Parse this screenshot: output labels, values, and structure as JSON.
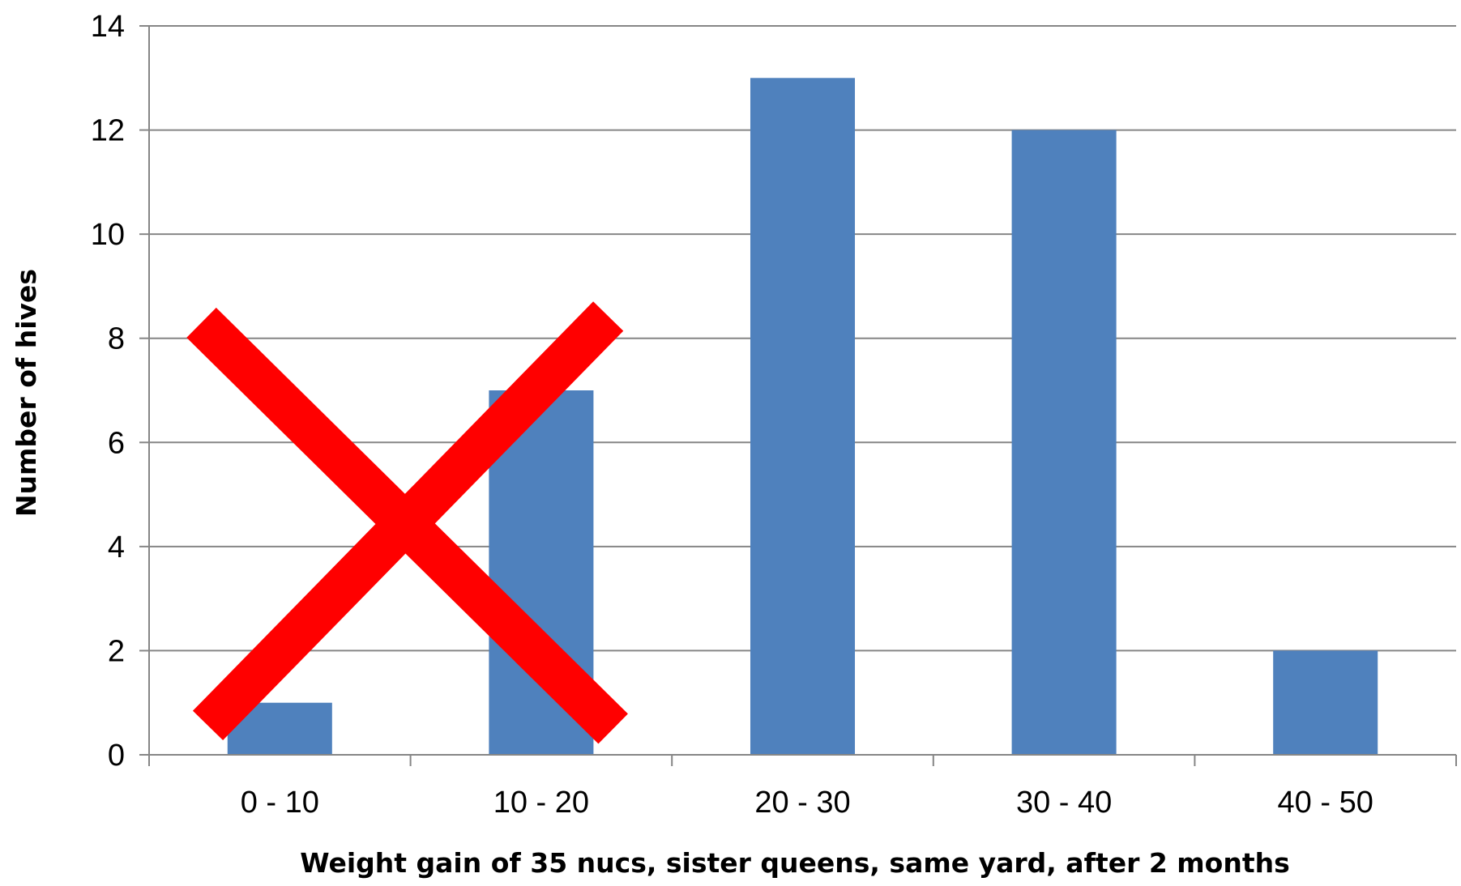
{
  "chart_data": {
    "type": "bar",
    "title": "",
    "xlabel": "Weight gain of 35 nucs, sister queens, same yard, after 2 months",
    "ylabel": "Number of hives",
    "categories": [
      "0 - 10",
      "10 - 20",
      "20 - 30",
      "30 - 40",
      "40 - 50"
    ],
    "values": [
      1,
      7,
      13,
      12,
      2
    ],
    "ylim": [
      0,
      14
    ],
    "yticks": [
      0,
      2,
      4,
      6,
      8,
      10,
      12,
      14
    ],
    "grid": true,
    "legend": "none",
    "bar_color": "#4f81bd",
    "annotation": "red-x-over-first-two-bars",
    "annotation_color": "#ff0000"
  }
}
